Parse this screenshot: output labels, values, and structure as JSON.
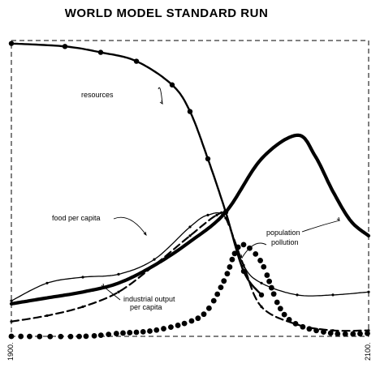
{
  "chart_data": {
    "type": "line",
    "title": "WORLD MODEL STANDARD RUN",
    "x_ticks": [
      "1900",
      "2100"
    ],
    "xlim": [
      1900,
      2100
    ],
    "ylim": [
      0,
      1
    ],
    "grid": false,
    "legend": "inline annotations",
    "series": [
      {
        "name": "resources",
        "label": "resources",
        "style": "heavy line with dots",
        "x": [
          1900,
          1930,
          1950,
          1970,
          1990,
          2000,
          2010,
          2020,
          2030,
          2040
        ],
        "values": [
          0.99,
          0.98,
          0.96,
          0.93,
          0.85,
          0.76,
          0.6,
          0.42,
          0.22,
          0.14
        ]
      },
      {
        "name": "food per capita",
        "label": "food per capita",
        "style": "thin line",
        "x": [
          1900,
          1920,
          1940,
          1960,
          1980,
          2000,
          2010,
          2020,
          2030,
          2040,
          2060,
          2080,
          2100
        ],
        "values": [
          0.12,
          0.18,
          0.2,
          0.21,
          0.26,
          0.37,
          0.41,
          0.4,
          0.24,
          0.18,
          0.14,
          0.14,
          0.15
        ]
      },
      {
        "name": "population",
        "label": "population",
        "style": "thick line",
        "x": [
          1900,
          1920,
          1940,
          1960,
          1980,
          2000,
          2020,
          2040,
          2060,
          2070,
          2080,
          2090,
          2100
        ],
        "values": [
          0.11,
          0.13,
          0.15,
          0.18,
          0.24,
          0.32,
          0.42,
          0.6,
          0.68,
          0.61,
          0.49,
          0.39,
          0.34
        ]
      },
      {
        "name": "industrial output per capita",
        "label": "industrial output\nper capita",
        "style": "dashed line",
        "x": [
          1900,
          1920,
          1940,
          1960,
          1980,
          2000,
          2015,
          2020,
          2030,
          2040,
          2060,
          2080,
          2100
        ],
        "values": [
          0.05,
          0.07,
          0.1,
          0.15,
          0.24,
          0.34,
          0.41,
          0.4,
          0.24,
          0.1,
          0.04,
          0.02,
          0.02
        ]
      },
      {
        "name": "pollution",
        "label": "pollution",
        "style": "large dots",
        "x": [
          1900,
          1940,
          1960,
          1980,
          2000,
          2010,
          2020,
          2025,
          2030,
          2040,
          2050,
          2060,
          2080,
          2100
        ],
        "values": [
          0.0,
          0.0,
          0.01,
          0.02,
          0.05,
          0.09,
          0.2,
          0.28,
          0.31,
          0.25,
          0.1,
          0.04,
          0.01,
          0.01
        ]
      }
    ]
  }
}
